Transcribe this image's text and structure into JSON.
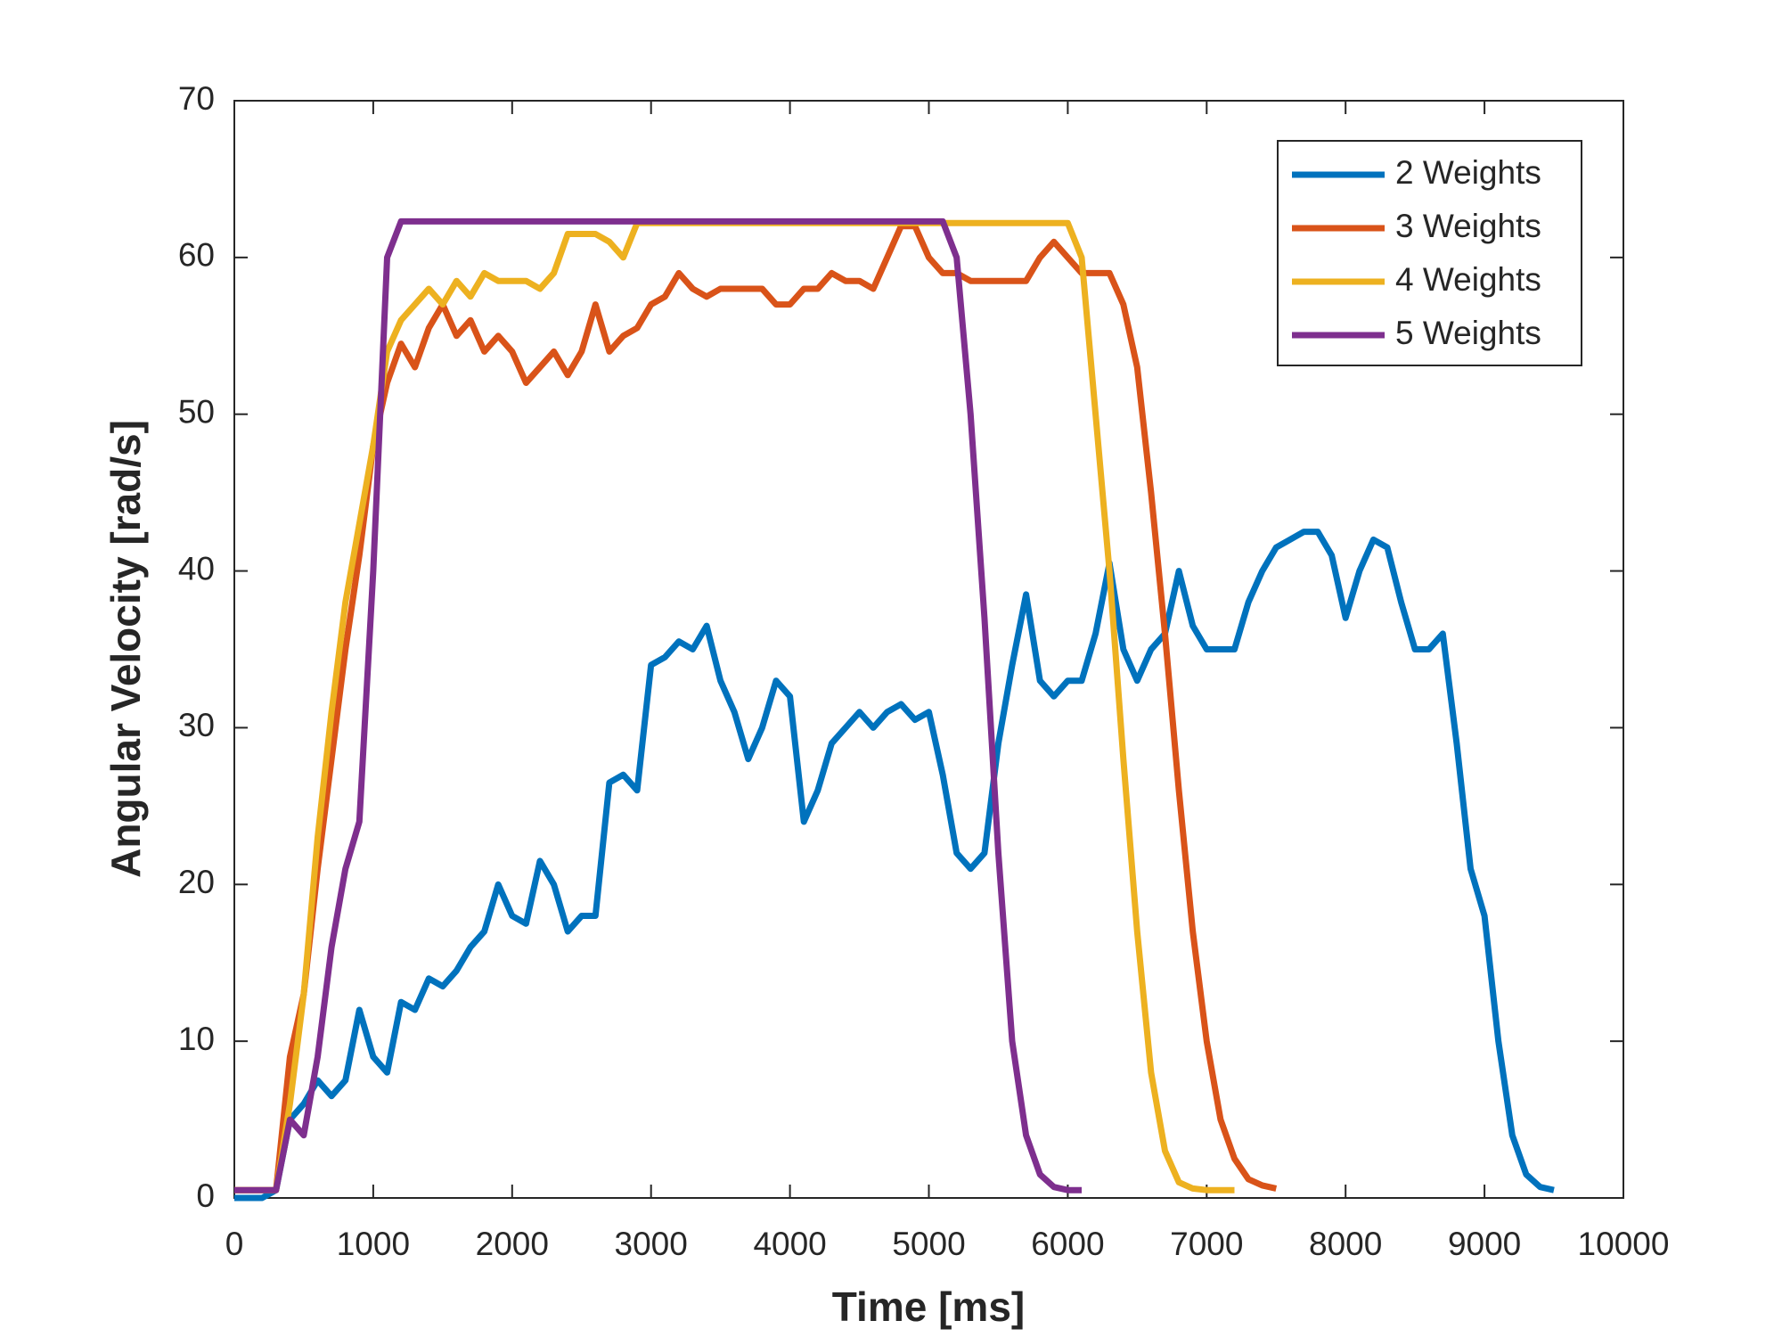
{
  "chart_data": {
    "type": "line",
    "xlabel": "Time [ms]",
    "ylabel": "Angular Velocity [rad/s]",
    "x": [
      0,
      100,
      200,
      300,
      400,
      500,
      600,
      700,
      800,
      900,
      1000,
      1100,
      1200,
      1300,
      1400,
      1500,
      1600,
      1700,
      1800,
      1900,
      2000,
      2100,
      2200,
      2300,
      2400,
      2500,
      2600,
      2700,
      2800,
      2900,
      3000,
      3100,
      3200,
      3300,
      3400,
      3500,
      3600,
      3700,
      3800,
      3900,
      4000,
      4100,
      4200,
      4300,
      4400,
      4500,
      4600,
      4700,
      4800,
      4900,
      5000,
      5100,
      5200,
      5300,
      5400,
      5500,
      5600,
      5700,
      5800,
      5900,
      6000,
      6100,
      6200,
      6300,
      6400,
      6500,
      6600,
      6700,
      6800,
      6900,
      7000,
      7100,
      7200,
      7300,
      7400,
      7500,
      7600,
      7700,
      7800,
      7900,
      8000,
      8100,
      8200,
      8300,
      8400,
      8500,
      8600,
      8700,
      8800,
      8900,
      9000,
      9100,
      9200,
      9300,
      9400,
      9500
    ],
    "series": [
      {
        "name": "2 Weights",
        "color": "#0072BD",
        "values": [
          0,
          0,
          0,
          0.5,
          5,
          6,
          7.5,
          6.5,
          7.5,
          12,
          9,
          8,
          12.5,
          12,
          14,
          13.5,
          14.5,
          16,
          17,
          20,
          18,
          17.5,
          21.5,
          20,
          17,
          18,
          18,
          26.5,
          27,
          26,
          34,
          34.5,
          35.5,
          35,
          36.5,
          33,
          31,
          28,
          30,
          33,
          32,
          24,
          26,
          29,
          30,
          31,
          30,
          31,
          31.5,
          30.5,
          31,
          27,
          22,
          21,
          22,
          29,
          34,
          38.5,
          33,
          32,
          33,
          33,
          36,
          40.5,
          35,
          33,
          35,
          36,
          40,
          36.5,
          35,
          35,
          35,
          38,
          40,
          41.5,
          42,
          42.5,
          42.5,
          41,
          37,
          40,
          42,
          41.5,
          38,
          35,
          35,
          36,
          29,
          21,
          18,
          10,
          4,
          1.5,
          0.7,
          0.5
        ]
      },
      {
        "name": "3 Weights",
        "color": "#D95319",
        "values": [
          0.5,
          0.5,
          0.5,
          0.5,
          9,
          13,
          21,
          28,
          35,
          41,
          48,
          52,
          54.5,
          53,
          55.5,
          57,
          55,
          56,
          54,
          55,
          54,
          52,
          53,
          54,
          52.5,
          54,
          57,
          54,
          55,
          55.5,
          57,
          57.5,
          59,
          58,
          57.5,
          58,
          58,
          58,
          58,
          57,
          57,
          58,
          58,
          59,
          58.5,
          58.5,
          58,
          60,
          62,
          62,
          60,
          59,
          59,
          58.5,
          58.5,
          58.5,
          58.5,
          58.5,
          60,
          61,
          60,
          59,
          59,
          59,
          57,
          53,
          45,
          36,
          26,
          17,
          10,
          5,
          2.5,
          1.2,
          0.8,
          0.6,
          null,
          null,
          null,
          null,
          null,
          null,
          null,
          null,
          null,
          null,
          null,
          null,
          null,
          null,
          null,
          null,
          null,
          null,
          null,
          null
        ]
      },
      {
        "name": "4 Weights",
        "color": "#EDB120",
        "values": [
          0.5,
          0.5,
          0.5,
          0.5,
          6,
          13,
          23,
          31,
          38,
          43,
          48,
          54,
          56,
          57,
          58,
          57,
          58.5,
          57.5,
          59,
          58.5,
          58.5,
          58.5,
          58,
          59,
          61.5,
          61.5,
          61.5,
          61,
          60,
          62.2,
          62.2,
          62.2,
          62.2,
          62.2,
          62.2,
          62.2,
          62.2,
          62.2,
          62.2,
          62.2,
          62.2,
          62.2,
          62.2,
          62.2,
          62.2,
          62.2,
          62.2,
          62.2,
          62.2,
          62.2,
          62.2,
          62.2,
          62.2,
          62.2,
          62.2,
          62.2,
          62.2,
          62.2,
          62.2,
          62.2,
          62.2,
          60,
          50,
          40,
          28,
          17,
          8,
          3,
          1,
          0.6,
          0.5,
          0.5,
          0.5,
          null,
          null,
          null,
          null,
          null,
          null,
          null,
          null,
          null,
          null,
          null,
          null,
          null,
          null,
          null,
          null,
          null,
          null,
          null,
          null,
          null,
          null,
          null
        ]
      },
      {
        "name": "5 Weights",
        "color": "#7E2F8E",
        "values": [
          0.5,
          0.5,
          0.5,
          0.5,
          5,
          4,
          9,
          16,
          21,
          24,
          40,
          60,
          62.3,
          62.3,
          62.3,
          62.3,
          62.3,
          62.3,
          62.3,
          62.3,
          62.3,
          62.3,
          62.3,
          62.3,
          62.3,
          62.3,
          62.3,
          62.3,
          62.3,
          62.3,
          62.3,
          62.3,
          62.3,
          62.3,
          62.3,
          62.3,
          62.3,
          62.3,
          62.3,
          62.3,
          62.3,
          62.3,
          62.3,
          62.3,
          62.3,
          62.3,
          62.3,
          62.3,
          62.3,
          62.3,
          62.3,
          62.3,
          60,
          50,
          37,
          22,
          10,
          4,
          1.5,
          0.7,
          0.5,
          0.5,
          null,
          null,
          null,
          null,
          null,
          null,
          null,
          null,
          null,
          null,
          null,
          null,
          null,
          null,
          null,
          null,
          null,
          null,
          null,
          null,
          null,
          null,
          null,
          null,
          null,
          null,
          null,
          null,
          null,
          null,
          null,
          null,
          null,
          null
        ]
      }
    ],
    "xlim": [
      0,
      10000
    ],
    "xticks": [
      0,
      1000,
      2000,
      3000,
      4000,
      5000,
      6000,
      7000,
      8000,
      9000,
      10000
    ],
    "ylim": [
      0,
      70
    ],
    "yticks": [
      0,
      10,
      20,
      30,
      40,
      50,
      60,
      70
    ],
    "legend": "top-right",
    "grid": false
  }
}
